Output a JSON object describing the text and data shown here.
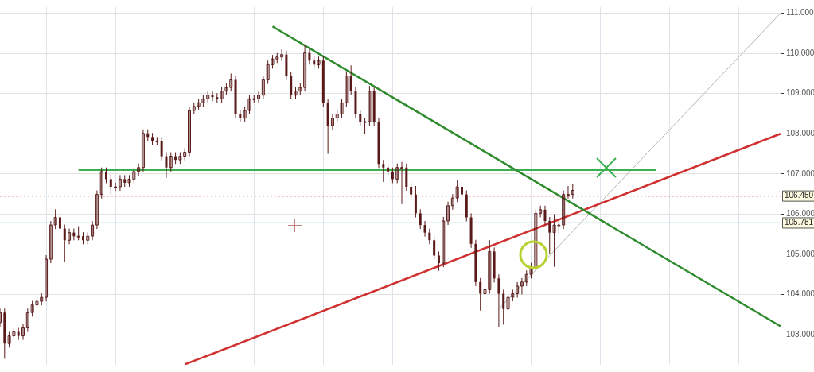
{
  "chart_data": {
    "type": "candlestick",
    "color": "#5a1a1a",
    "tick_labels": "y",
    "grid": true,
    "legend": false,
    "marker": "none",
    "categories": [
      null,
      null,
      null,
      null,
      null,
      null,
      null,
      null,
      null,
      null,
      null,
      null,
      null,
      null,
      null,
      null,
      null,
      null,
      null,
      null,
      null,
      null,
      null,
      null,
      null,
      null,
      null,
      null,
      null,
      null,
      null,
      null,
      null,
      null,
      null,
      null,
      null,
      null,
      null,
      null,
      null,
      null,
      null,
      null,
      null,
      null,
      null,
      null,
      null,
      null,
      null,
      null,
      null,
      null,
      null,
      null,
      null,
      null,
      null,
      null,
      null,
      null,
      null,
      null,
      null,
      null,
      null,
      null,
      null,
      null,
      null,
      null,
      null,
      null,
      null,
      null,
      null,
      null,
      null,
      null,
      null,
      null,
      null,
      null,
      null,
      null,
      null,
      null,
      null,
      null,
      null,
      null,
      null,
      null,
      null,
      null,
      null,
      null,
      null,
      null,
      null,
      null,
      null,
      null,
      null,
      null,
      null,
      null,
      null,
      null,
      null,
      null,
      null,
      null,
      null,
      null,
      null,
      null,
      null,
      null,
      null,
      null,
      null,
      null,
      null,
      null,
      null,
      null,
      null,
      null,
      null,
      null,
      null,
      null,
      null,
      null,
      null,
      null,
      null,
      null,
      null,
      null,
      null,
      null,
      null,
      null,
      null,
      null,
      null,
      null,
      null,
      null,
      null,
      null,
      null,
      null,
      null,
      null,
      null,
      null,
      null,
      null,
      null,
      null,
      null,
      null,
      null,
      null,
      null,
      null
    ],
    "ohlc": [
      [
        103.3,
        103.65,
        103.2,
        103.55
      ],
      [
        103.55,
        103.65,
        102.4,
        102.78
      ],
      [
        102.78,
        103.07,
        102.68,
        102.97
      ],
      [
        102.97,
        103.17,
        102.87,
        103.07
      ],
      [
        103.07,
        103.17,
        102.87,
        102.97
      ],
      [
        102.97,
        103.27,
        102.87,
        103.17
      ],
      [
        103.17,
        103.65,
        103.07,
        103.55
      ],
      [
        103.55,
        103.84,
        103.45,
        103.74
      ],
      [
        103.74,
        103.93,
        103.64,
        103.83
      ],
      [
        103.83,
        104.03,
        103.73,
        103.93
      ],
      [
        103.93,
        104.98,
        103.83,
        104.88
      ],
      [
        104.88,
        105.83,
        104.78,
        105.73
      ],
      [
        105.73,
        106.12,
        105.63,
        105.92
      ],
      [
        105.92,
        106.02,
        105.54,
        105.64
      ],
      [
        105.64,
        105.74,
        104.8,
        105.35
      ],
      [
        105.35,
        105.64,
        105.25,
        105.54
      ],
      [
        105.54,
        105.64,
        105.35,
        105.45
      ],
      [
        105.45,
        105.7,
        105.35,
        105.45
      ],
      [
        105.45,
        105.55,
        105.25,
        105.35
      ],
      [
        105.35,
        105.55,
        105.25,
        105.45
      ],
      [
        105.45,
        105.83,
        105.35,
        105.73
      ],
      [
        105.73,
        106.59,
        105.63,
        106.49
      ],
      [
        106.49,
        107.16,
        106.39,
        107.06
      ],
      [
        107.06,
        107.16,
        106.77,
        106.87
      ],
      [
        106.87,
        106.97,
        106.5,
        106.68
      ],
      [
        106.68,
        106.78,
        106.58,
        106.68
      ],
      [
        106.68,
        106.97,
        106.58,
        106.87
      ],
      [
        106.87,
        106.97,
        106.68,
        106.78
      ],
      [
        106.78,
        106.97,
        106.68,
        106.87
      ],
      [
        106.87,
        107.16,
        106.77,
        107.06
      ],
      [
        107.06,
        107.26,
        106.96,
        107.16
      ],
      [
        107.16,
        108.11,
        107.06,
        108.01
      ],
      [
        108.01,
        108.11,
        107.82,
        107.92
      ],
      [
        107.92,
        108.02,
        107.72,
        107.82
      ],
      [
        107.82,
        107.92,
        107.72,
        107.82
      ],
      [
        107.82,
        107.92,
        107.34,
        107.44
      ],
      [
        107.44,
        107.54,
        106.9,
        107.16
      ],
      [
        107.16,
        107.54,
        107.06,
        107.44
      ],
      [
        107.44,
        107.54,
        107.25,
        107.35
      ],
      [
        107.35,
        107.54,
        107.25,
        107.44
      ],
      [
        107.44,
        107.64,
        107.34,
        107.54
      ],
      [
        107.54,
        108.68,
        107.44,
        108.58
      ],
      [
        108.58,
        108.78,
        108.48,
        108.68
      ],
      [
        108.68,
        108.87,
        108.58,
        108.77
      ],
      [
        108.77,
        108.97,
        108.67,
        108.87
      ],
      [
        108.87,
        109.06,
        108.77,
        108.96
      ],
      [
        108.96,
        109.06,
        108.81,
        108.91
      ],
      [
        108.91,
        109.01,
        108.77,
        108.87
      ],
      [
        108.87,
        109.16,
        108.77,
        109.06
      ],
      [
        109.06,
        109.25,
        108.96,
        109.15
      ],
      [
        109.15,
        109.5,
        109.05,
        109.34
      ],
      [
        109.34,
        109.44,
        108.39,
        108.49
      ],
      [
        108.49,
        108.59,
        108.29,
        108.39
      ],
      [
        108.39,
        108.68,
        108.29,
        108.58
      ],
      [
        108.58,
        108.97,
        108.48,
        108.87
      ],
      [
        108.87,
        108.97,
        108.77,
        108.87
      ],
      [
        108.87,
        109.06,
        108.77,
        108.96
      ],
      [
        108.96,
        109.44,
        108.86,
        109.34
      ],
      [
        109.34,
        109.82,
        109.24,
        109.72
      ],
      [
        109.72,
        109.96,
        109.62,
        109.86
      ],
      [
        109.86,
        110.01,
        109.76,
        109.91
      ],
      [
        109.91,
        110.1,
        109.81,
        109.97
      ],
      [
        109.97,
        110.07,
        109.34,
        109.44
      ],
      [
        109.44,
        109.54,
        108.86,
        108.96
      ],
      [
        108.96,
        109.16,
        108.86,
        109.06
      ],
      [
        109.06,
        109.25,
        108.96,
        109.15
      ],
      [
        109.15,
        110.2,
        109.05,
        110.01
      ],
      [
        110.01,
        110.11,
        109.72,
        109.82
      ],
      [
        109.82,
        109.92,
        109.62,
        109.72
      ],
      [
        109.72,
        109.92,
        109.62,
        109.82
      ],
      [
        109.82,
        109.92,
        108.67,
        108.77
      ],
      [
        108.77,
        108.87,
        107.5,
        108.2
      ],
      [
        108.2,
        108.49,
        108.1,
        108.39
      ],
      [
        108.39,
        108.59,
        108.29,
        108.49
      ],
      [
        108.49,
        108.87,
        108.39,
        108.77
      ],
      [
        108.77,
        109.54,
        108.67,
        109.44
      ],
      [
        109.44,
        109.7,
        108.96,
        109.06
      ],
      [
        109.06,
        109.16,
        108.39,
        108.49
      ],
      [
        108.49,
        108.59,
        108.2,
        108.3
      ],
      [
        108.3,
        108.4,
        108.0,
        108.3
      ],
      [
        108.3,
        109.19,
        108.2,
        109.06
      ],
      [
        109.06,
        109.16,
        108.2,
        108.3
      ],
      [
        108.3,
        108.4,
        107.15,
        107.25
      ],
      [
        107.25,
        107.35,
        106.8,
        107.16
      ],
      [
        107.16,
        107.26,
        106.96,
        107.06
      ],
      [
        107.06,
        107.16,
        106.77,
        106.87
      ],
      [
        106.87,
        107.26,
        106.77,
        107.16
      ],
      [
        107.16,
        107.3,
        106.25,
        107.16
      ],
      [
        107.16,
        107.26,
        106.58,
        106.68
      ],
      [
        106.68,
        106.78,
        106.39,
        106.49
      ],
      [
        106.49,
        106.7,
        105.92,
        106.02
      ],
      [
        106.02,
        106.12,
        105.63,
        105.73
      ],
      [
        105.73,
        105.83,
        105.44,
        105.54
      ],
      [
        105.54,
        105.64,
        105.25,
        105.35
      ],
      [
        105.35,
        105.45,
        104.87,
        104.97
      ],
      [
        104.97,
        105.07,
        104.59,
        104.78
      ],
      [
        104.78,
        105.93,
        104.68,
        105.83
      ],
      [
        105.83,
        106.31,
        105.73,
        106.21
      ],
      [
        106.21,
        106.5,
        106.11,
        106.4
      ],
      [
        106.4,
        106.85,
        106.3,
        106.68
      ],
      [
        106.68,
        106.78,
        106.39,
        106.49
      ],
      [
        106.49,
        106.59,
        105.82,
        105.92
      ],
      [
        105.92,
        106.02,
        105.16,
        105.26
      ],
      [
        105.26,
        105.36,
        104.21,
        104.31
      ],
      [
        104.31,
        104.41,
        103.6,
        104.02
      ],
      [
        104.02,
        104.22,
        103.7,
        104.12
      ],
      [
        104.12,
        105.35,
        104.02,
        105.07
      ],
      [
        105.07,
        105.17,
        104.3,
        104.4
      ],
      [
        104.4,
        104.5,
        103.2,
        104.02
      ],
      [
        104.02,
        104.12,
        103.25,
        103.64
      ],
      [
        103.64,
        104.03,
        103.54,
        103.93
      ],
      [
        103.93,
        104.12,
        103.83,
        104.02
      ],
      [
        104.02,
        104.31,
        103.92,
        104.21
      ],
      [
        104.21,
        104.41,
        104.0,
        104.31
      ],
      [
        104.31,
        104.6,
        104.21,
        104.5
      ],
      [
        104.5,
        104.79,
        104.4,
        104.69
      ],
      [
        104.69,
        106.12,
        104.59,
        106.02
      ],
      [
        106.02,
        106.21,
        105.92,
        106.11
      ],
      [
        106.11,
        106.21,
        105.73,
        105.83
      ],
      [
        105.83,
        105.93,
        105.0,
        105.54
      ],
      [
        105.54,
        106.0,
        104.69,
        105.73
      ],
      [
        105.73,
        105.83,
        105.5,
        105.73
      ],
      [
        105.73,
        106.59,
        105.63,
        106.49
      ],
      [
        106.49,
        106.7,
        106.39,
        106.49
      ],
      [
        106.49,
        106.75,
        106.39,
        106.59
      ],
      null,
      null,
      null,
      null,
      null,
      null,
      null,
      null,
      null,
      null,
      null,
      null,
      null,
      null,
      null,
      null,
      null,
      null,
      null,
      null,
      null,
      null,
      null,
      null,
      null,
      null,
      null,
      null,
      null,
      null,
      null,
      null,
      null,
      null,
      null,
      null,
      null,
      null,
      null,
      null,
      null,
      null,
      null,
      null,
      null
    ],
    "series": [
      {
        "type": "line",
        "color": "#2e8b2e",
        "values": [
          null,
          null,
          null,
          null,
          null,
          null,
          null,
          null,
          null,
          null,
          null,
          null,
          null,
          null,
          null,
          null,
          null,
          null,
          null,
          null,
          null,
          null,
          null,
          null,
          null,
          null,
          null,
          null,
          null,
          null,
          null,
          null,
          null,
          null,
          null,
          null,
          null,
          null,
          null,
          null,
          null,
          null,
          null,
          null,
          null,
          null,
          null,
          null,
          null,
          null,
          null,
          null,
          null,
          null,
          null,
          null,
          null,
          null,
          null,
          110.67,
          null,
          null,
          null,
          null,
          null,
          null,
          null,
          null,
          null,
          null,
          null,
          null,
          null,
          null,
          null,
          null,
          null,
          null,
          null,
          null,
          null,
          null,
          null,
          null,
          null,
          null,
          null,
          null,
          null,
          null,
          null,
          null,
          null,
          null,
          null,
          null,
          null,
          null,
          null,
          null,
          null,
          null,
          null,
          null,
          null,
          null,
          null,
          null,
          null,
          null,
          null,
          null,
          null,
          null,
          null,
          null,
          null,
          null,
          null,
          null,
          null,
          null,
          null,
          null,
          null,
          null,
          null,
          null,
          null,
          null,
          null,
          null,
          null,
          null,
          null,
          null,
          null,
          null,
          null,
          null,
          null,
          null,
          null,
          null,
          null,
          null,
          null,
          null,
          null,
          null,
          null,
          null,
          null,
          null,
          null,
          null,
          null,
          null,
          null,
          null,
          null,
          null,
          null,
          null,
          null,
          null,
          null,
          null,
          null,
          103.21
        ]
      },
      {
        "type": "line",
        "color": "#3cb050",
        "values": [
          null,
          null,
          null,
          null,
          null,
          null,
          null,
          null,
          null,
          null,
          null,
          null,
          null,
          null,
          null,
          null,
          null,
          107.1,
          null,
          null,
          null,
          null,
          null,
          null,
          null,
          null,
          null,
          null,
          null,
          null,
          null,
          null,
          null,
          null,
          null,
          null,
          null,
          null,
          null,
          null,
          null,
          null,
          null,
          null,
          null,
          null,
          null,
          null,
          null,
          null,
          null,
          null,
          null,
          null,
          null,
          null,
          null,
          null,
          null,
          null,
          null,
          null,
          null,
          null,
          null,
          null,
          null,
          null,
          null,
          null,
          null,
          null,
          null,
          null,
          null,
          null,
          null,
          null,
          null,
          null,
          null,
          null,
          null,
          null,
          null,
          null,
          null,
          null,
          null,
          null,
          null,
          null,
          null,
          null,
          null,
          null,
          null,
          null,
          null,
          null,
          null,
          null,
          null,
          null,
          null,
          null,
          null,
          null,
          null,
          null,
          null,
          null,
          null,
          null,
          null,
          null,
          null,
          null,
          null,
          null,
          null,
          null,
          null,
          null,
          null,
          null,
          null,
          null,
          null,
          null,
          null,
          null,
          null,
          null,
          null,
          null,
          null,
          null,
          null,
          null,
          null,
          null,
          107.1,
          null,
          null,
          null,
          null,
          null,
          null,
          null,
          null,
          null,
          null,
          null,
          null,
          null,
          null,
          null,
          null,
          null,
          null,
          null,
          null,
          null,
          null,
          null,
          null,
          null,
          null,
          null
        ]
      },
      {
        "type": "line",
        "color": "#d03030",
        "values": [
          null,
          null,
          null,
          null,
          null,
          null,
          null,
          null,
          null,
          null,
          null,
          null,
          null,
          null,
          null,
          null,
          null,
          null,
          null,
          null,
          null,
          null,
          null,
          null,
          null,
          null,
          null,
          null,
          null,
          null,
          null,
          null,
          null,
          null,
          null,
          null,
          null,
          null,
          null,
          null,
          102.26,
          null,
          null,
          null,
          null,
          null,
          null,
          null,
          null,
          null,
          null,
          null,
          null,
          null,
          null,
          null,
          null,
          null,
          null,
          null,
          null,
          null,
          null,
          null,
          null,
          null,
          null,
          null,
          null,
          null,
          null,
          null,
          null,
          null,
          null,
          null,
          null,
          null,
          null,
          null,
          null,
          null,
          null,
          null,
          null,
          null,
          null,
          null,
          null,
          null,
          null,
          null,
          null,
          null,
          null,
          null,
          null,
          null,
          null,
          null,
          null,
          null,
          null,
          null,
          null,
          null,
          null,
          null,
          null,
          null,
          null,
          null,
          null,
          null,
          null,
          null,
          null,
          null,
          null,
          null,
          null,
          null,
          null,
          null,
          null,
          null,
          null,
          null,
          null,
          null,
          null,
          null,
          null,
          null,
          null,
          null,
          null,
          null,
          null,
          null,
          null,
          null,
          null,
          null,
          null,
          null,
          null,
          null,
          null,
          null,
          null,
          null,
          null,
          null,
          null,
          null,
          null,
          null,
          null,
          null,
          null,
          null,
          null,
          null,
          null,
          null,
          null,
          null,
          null,
          108.0
        ]
      },
      {
        "type": "line",
        "color": "#b4b4b4",
        "values": [
          null,
          null,
          null,
          null,
          null,
          null,
          null,
          null,
          null,
          null,
          null,
          null,
          null,
          null,
          null,
          null,
          null,
          null,
          null,
          null,
          null,
          null,
          null,
          null,
          null,
          null,
          null,
          null,
          null,
          null,
          null,
          null,
          null,
          null,
          null,
          null,
          null,
          null,
          null,
          null,
          null,
          null,
          null,
          null,
          null,
          null,
          null,
          null,
          null,
          null,
          null,
          null,
          null,
          null,
          null,
          null,
          null,
          null,
          null,
          null,
          null,
          null,
          null,
          null,
          null,
          null,
          null,
          null,
          null,
          null,
          null,
          null,
          null,
          null,
          null,
          null,
          null,
          null,
          null,
          null,
          null,
          null,
          null,
          null,
          null,
          null,
          null,
          null,
          null,
          null,
          null,
          null,
          null,
          null,
          null,
          null,
          null,
          null,
          null,
          null,
          null,
          null,
          null,
          null,
          null,
          null,
          null,
          null,
          103.64,
          null,
          null,
          null,
          null,
          null,
          null,
          null,
          null,
          null,
          null,
          null,
          null,
          null,
          null,
          null,
          null,
          null,
          null,
          null,
          null,
          null,
          null,
          null,
          null,
          null,
          null,
          null,
          null,
          null,
          null,
          null,
          null,
          null,
          null,
          null,
          null,
          null,
          null,
          null,
          null,
          null,
          null,
          null,
          null,
          null,
          null,
          null,
          null,
          null,
          null,
          null,
          null,
          null,
          null,
          null,
          null,
          null,
          null,
          null,
          null,
          111.0
        ]
      }
    ],
    "ref_lines": [
      {
        "axis": "y",
        "value": 106.45,
        "label": "106.450",
        "color": "#cc2222",
        "line_style": "dotted"
      },
      {
        "axis": "y",
        "value": 105.781,
        "label": "105.781",
        "color": "#a8d8d8",
        "line_style": "solid"
      }
    ],
    "ylim": [
      102.25,
      111.15
    ],
    "yticks": [
      {
        "value": 103,
        "label": "103.000"
      },
      {
        "value": 104,
        "label": "104.000"
      },
      {
        "value": 105,
        "label": "105.000"
      },
      {
        "value": 106,
        "label": "106.000"
      },
      {
        "value": 107,
        "label": "107.000"
      },
      {
        "value": 108,
        "label": "108.000"
      },
      {
        "value": 109,
        "label": "109.000"
      },
      {
        "value": 110,
        "label": "110.000"
      },
      {
        "value": 111,
        "label": "111.000"
      }
    ]
  }
}
